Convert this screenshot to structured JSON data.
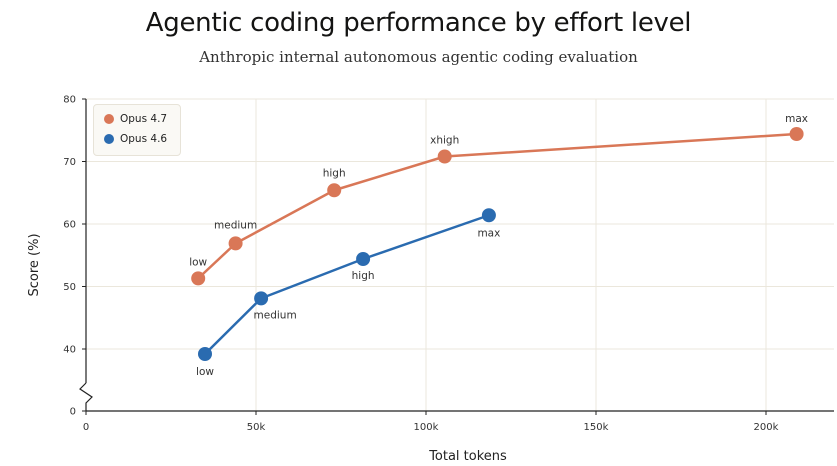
{
  "chart_data": {
    "type": "line",
    "title": "Agentic coding performance by effort level",
    "subtitle": "Anthropic internal autonomous agentic coding evaluation",
    "xlabel": "Total tokens",
    "ylabel": "Score (%)",
    "xlim": [
      0,
      220000
    ],
    "x_ticks": [
      0,
      50000,
      100000,
      150000,
      200000
    ],
    "x_tick_labels": [
      "0",
      "50k",
      "100k",
      "150k",
      "200k"
    ],
    "y_ticks": [
      0,
      40,
      50,
      60,
      70,
      80
    ],
    "y_tick_labels": [
      "0",
      "40",
      "50",
      "60",
      "70",
      "80"
    ],
    "y_axis_break": "between 0 and 40",
    "grid": true,
    "legend_position": "top-left",
    "series": [
      {
        "name": "Opus 4.7",
        "color": "#d97757",
        "points": [
          {
            "x": 33000,
            "y": 51.3,
            "label": "low"
          },
          {
            "x": 44000,
            "y": 56.9,
            "label": "medium"
          },
          {
            "x": 73000,
            "y": 65.4,
            "label": "high"
          },
          {
            "x": 105500,
            "y": 70.8,
            "label": "xhigh"
          },
          {
            "x": 209000,
            "y": 74.4,
            "label": "max"
          }
        ]
      },
      {
        "name": "Opus 4.6",
        "color": "#2a6bb0",
        "points": [
          {
            "x": 35000,
            "y": 39.2,
            "label": "low"
          },
          {
            "x": 51500,
            "y": 48.1,
            "label": "medium"
          },
          {
            "x": 81500,
            "y": 54.4,
            "label": "high"
          },
          {
            "x": 118500,
            "y": 61.4,
            "label": "max"
          }
        ]
      }
    ]
  }
}
